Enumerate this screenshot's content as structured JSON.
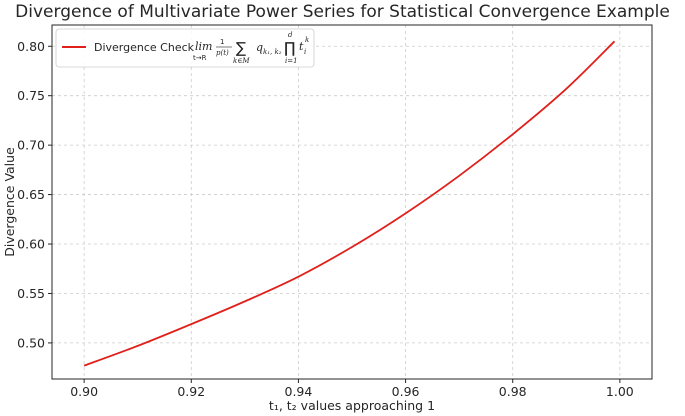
{
  "chart_data": {
    "type": "line",
    "title": "Divergence of Multivariate Power Series for Statistical Convergence Example",
    "xlabel": "t₁, t₂ values approaching 1",
    "ylabel": "Divergence Value",
    "xlim": [
      0.894,
      1.006
    ],
    "ylim": [
      0.4635,
      0.8215
    ],
    "x_ticks": [
      0.9,
      0.92,
      0.94,
      0.96,
      0.98,
      1.0
    ],
    "x_tick_labels": [
      "0.90",
      "0.92",
      "0.94",
      "0.96",
      "0.98",
      "1.00"
    ],
    "y_ticks": [
      0.5,
      0.55,
      0.6,
      0.65,
      0.7,
      0.75,
      0.8
    ],
    "y_tick_labels": [
      "0.50",
      "0.55",
      "0.60",
      "0.65",
      "0.70",
      "0.75",
      "0.80"
    ],
    "grid": true,
    "legend_position": "top-left",
    "series": [
      {
        "name": "Divergence Check",
        "color": "#e0201b",
        "x": [
          0.9,
          0.91,
          0.92,
          0.93,
          0.94,
          0.95,
          0.96,
          0.97,
          0.98,
          0.99,
          0.999
        ],
        "y": [
          0.477,
          0.497,
          0.519,
          0.542,
          0.567,
          0.597,
          0.631,
          0.669,
          0.711,
          0.757,
          0.805
        ]
      }
    ],
    "legend_formula": {
      "lim": "lim",
      "lim_sub": "t→R",
      "frac_num": "1",
      "frac_den": "p(t)",
      "sum": "∑",
      "sum_sub": "k∈M",
      "q": "q",
      "q_sub": "k₁, k₂",
      "prod": "∏",
      "prod_sup": "d",
      "prod_sub": "i=1",
      "t": "t",
      "t_sub": "i",
      "t_sup": "k"
    }
  }
}
